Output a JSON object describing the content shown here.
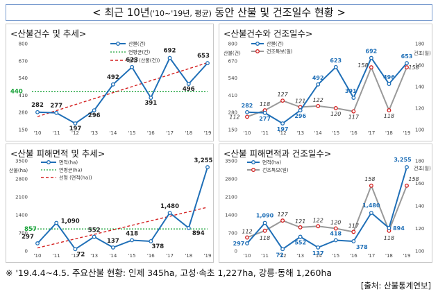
{
  "title": {
    "prefix": "< 최근 10년",
    "sub": "('10~'19년, 평균)",
    "suffix": " 동안 산불 및 건조일수 현황 >"
  },
  "footnote": "※ '19.4.4~4.5. 주요산불 현황: 인제 345ha, 고성·속초 1,227ha, 강릉·동해 1,260ha",
  "source": "[출처: 산불통계연보]",
  "colors": {
    "blue": "#1f6fb7",
    "green": "#1aa33a",
    "red": "#d42020",
    "gray": "#999999"
  },
  "chart_data": [
    {
      "type": "line",
      "title": "<산불건수 및 추세>",
      "categories": [
        "'10",
        "'11",
        "'12",
        "'13",
        "'14",
        "'15",
        "'16",
        "'17",
        "'18",
        "'19"
      ],
      "series": [
        {
          "name": "산불(건)",
          "values": [
            282,
            277,
            197,
            296,
            492,
            623,
            391,
            692,
            496,
            653
          ]
        }
      ],
      "average": {
        "name": "연평균(건)",
        "value": 440,
        "label": "440"
      },
      "trend": {
        "name": "선형 (산불(건))",
        "start": 249,
        "end": 656
      },
      "yticks": [
        "150",
        "280",
        "410",
        "540",
        "670",
        "800"
      ],
      "ylim": [
        150,
        800
      ],
      "labels": [
        "282",
        "277",
        "197",
        "296",
        "492",
        "623",
        "391",
        "692",
        "496",
        "653"
      ]
    },
    {
      "type": "line",
      "title": "<산불건수와 건조일수>",
      "categories": [
        "'10",
        "'11",
        "'12",
        "'13",
        "'14",
        "'15",
        "'16",
        "'17",
        "'18",
        "'19"
      ],
      "series": [
        {
          "name": "산불(건)",
          "values": [
            282,
            277,
            197,
            296,
            492,
            623,
            391,
            692,
            496,
            653
          ],
          "labels": [
            "282",
            "277",
            "197",
            "296",
            "492",
            "623",
            "391",
            "692",
            "496",
            "653"
          ]
        },
        {
          "name": "건조특보(일)",
          "values": [
            112,
            118,
            127,
            121,
            122,
            120,
            117,
            158,
            118,
            158
          ],
          "labels": [
            "112",
            "118",
            "127",
            "121",
            "122",
            "120",
            "117",
            "158",
            "118",
            "158"
          ]
        }
      ],
      "left_unit": "산불(건)",
      "right_unit": "건조(일)",
      "yticks_left": [
        "150",
        "280",
        "410",
        "540",
        "670",
        "800"
      ],
      "ylim_left": [
        150,
        800
      ],
      "yticks_right": [
        "100",
        "120",
        "140",
        "160",
        "180"
      ],
      "ylim_right": [
        100,
        180
      ]
    },
    {
      "type": "line",
      "title": "<산불 피해면적 및 추세>",
      "categories": [
        "'10",
        "'11",
        "'12",
        "'13",
        "'14",
        "'15",
        "'16",
        "'17",
        "'18",
        "'19"
      ],
      "series": [
        {
          "name": "면적(ha)",
          "values": [
            297,
            1090,
            72,
            552,
            137,
            418,
            378,
            1480,
            894,
            3255
          ]
        }
      ],
      "average": {
        "name": "연평균(ha)",
        "value": 857,
        "label": "857"
      },
      "trend": {
        "name": "선형 (면적(ha))",
        "start": 120,
        "end": 1700
      },
      "left_unit": "산불(ha)",
      "yticks": [
        "0",
        "700",
        "1400",
        "2100",
        "2800",
        "3500"
      ],
      "ylim": [
        0,
        3500
      ],
      "labels": [
        "297",
        "1,090",
        "72",
        "552",
        "137",
        "418",
        "378",
        "1,480",
        "894",
        "3,255"
      ]
    },
    {
      "type": "line",
      "title": "<산불 피해면적과 건조일수>",
      "categories": [
        "'10",
        "'11",
        "'12",
        "'13",
        "'14",
        "'15",
        "'16",
        "'17",
        "'18",
        "'19"
      ],
      "series": [
        {
          "name": "면적(ha)",
          "values": [
            297,
            1090,
            72,
            552,
            137,
            418,
            378,
            1480,
            894,
            3255
          ],
          "labels": [
            "297",
            "1,090",
            "72",
            "552",
            "137",
            "418",
            "378",
            "1,480",
            "894",
            "3,255"
          ]
        },
        {
          "name": "건조특보(일)",
          "values": [
            112,
            118,
            127,
            121,
            122,
            120,
            117,
            158,
            118,
            158
          ],
          "labels": [
            "112",
            "118",
            "127",
            "121",
            "122",
            "120",
            "117",
            "158",
            "118",
            "158"
          ]
        }
      ],
      "right_unit": "건조(일)",
      "yticks_left": [
        "0",
        "700",
        "1400",
        "2100",
        "2800",
        "3500"
      ],
      "ylim_left": [
        0,
        3500
      ],
      "yticks_right": [
        "100",
        "120",
        "140",
        "160",
        "180"
      ],
      "ylim_right": [
        100,
        180
      ]
    }
  ]
}
